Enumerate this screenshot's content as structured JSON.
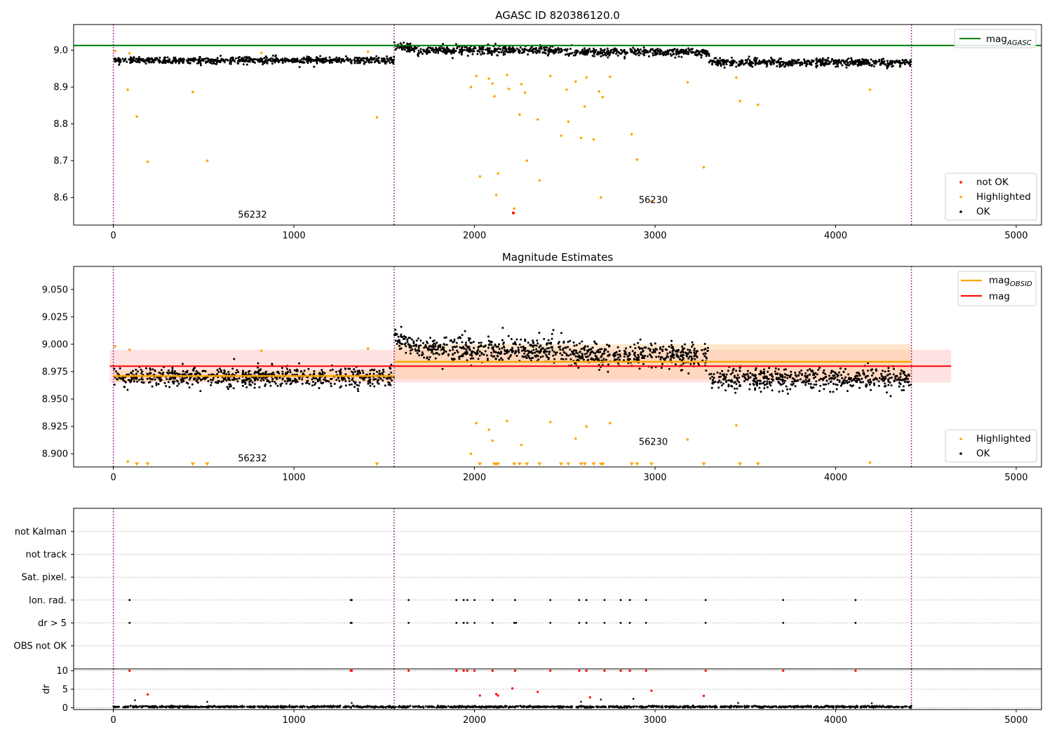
{
  "figure": {
    "colors": {
      "ok": "#000000",
      "highlighted": "#ffa500",
      "not_ok": "#ff0000",
      "agasc_line": "#008000",
      "mag_line": "#ff0000",
      "obsid_line": "#ffa500",
      "boundary": "#800080",
      "band_mag": "#ffc0c0",
      "band_obsid": "#ffc890"
    }
  },
  "chart_data": [
    {
      "type": "scatter",
      "title": "AGASC ID 820386120.0",
      "xlim": [
        -220,
        5140
      ],
      "ylim": [
        8.525,
        9.07
      ],
      "xticks": [
        0,
        1000,
        2000,
        3000,
        4000,
        5000
      ],
      "yticks": [
        8.6,
        8.7,
        8.8,
        8.9,
        9.0
      ],
      "ytick_labels": [
        "8.6",
        "8.7",
        "8.8",
        "8.9",
        "9.0"
      ],
      "reference_line": {
        "name": "mag",
        "subscript": "AGASC",
        "y": 9.013
      },
      "obsid_boundaries": [
        0,
        1555,
        4420
      ],
      "obsid_labels": [
        {
          "text": "56232",
          "x": 770,
          "y": 8.545
        },
        {
          "text": "56230",
          "x": 2990,
          "y": 8.585
        }
      ],
      "legend": {
        "placement": "upper-right",
        "entries": [
          {
            "name": "mag",
            "subscript": "AGASC"
          }
        ]
      },
      "legend2": {
        "placement": "lower-right",
        "entries": [
          "not OK",
          "Highlighted",
          "OK"
        ]
      },
      "ok_segments": [
        {
          "x": [
            0,
            1555
          ],
          "base": 8.973,
          "spread": 0.008,
          "count": 700
        },
        {
          "x": [
            1555,
            2500
          ],
          "base": 9.0,
          "spread": 0.01,
          "count": 420
        },
        {
          "x": [
            2500,
            3300
          ],
          "base": 8.995,
          "spread": 0.01,
          "count": 360
        },
        {
          "x": [
            3300,
            4420
          ],
          "base": 8.967,
          "spread": 0.009,
          "count": 500
        }
      ],
      "highlighted": [
        [
          10,
          8.998
        ],
        [
          80,
          8.893
        ],
        [
          90,
          8.992
        ],
        [
          130,
          8.82
        ],
        [
          190,
          8.697
        ],
        [
          440,
          8.887
        ],
        [
          520,
          8.7
        ],
        [
          820,
          8.993
        ],
        [
          1410,
          8.996
        ],
        [
          1460,
          8.818
        ],
        [
          1980,
          8.9
        ],
        [
          2010,
          8.93
        ],
        [
          2030,
          8.657
        ],
        [
          2080,
          8.923
        ],
        [
          2100,
          8.91
        ],
        [
          2110,
          8.875
        ],
        [
          2120,
          8.607
        ],
        [
          2130,
          8.665
        ],
        [
          2180,
          8.933
        ],
        [
          2190,
          8.895
        ],
        [
          2220,
          8.57
        ],
        [
          2250,
          8.825
        ],
        [
          2260,
          8.908
        ],
        [
          2280,
          8.885
        ],
        [
          2290,
          8.7
        ],
        [
          2350,
          8.812
        ],
        [
          2360,
          8.646
        ],
        [
          2420,
          8.93
        ],
        [
          2480,
          8.768
        ],
        [
          2510,
          8.893
        ],
        [
          2520,
          8.806
        ],
        [
          2560,
          8.915
        ],
        [
          2590,
          8.762
        ],
        [
          2610,
          8.847
        ],
        [
          2620,
          8.926
        ],
        [
          2660,
          8.758
        ],
        [
          2690,
          8.888
        ],
        [
          2700,
          8.6
        ],
        [
          2710,
          8.873
        ],
        [
          2750,
          8.928
        ],
        [
          2870,
          8.772
        ],
        [
          2900,
          8.703
        ],
        [
          2980,
          8.59
        ],
        [
          3180,
          8.913
        ],
        [
          3270,
          8.682
        ],
        [
          3450,
          8.926
        ],
        [
          3470,
          8.862
        ],
        [
          3570,
          8.852
        ],
        [
          4190,
          8.893
        ]
      ],
      "not_ok": [
        [
          2215,
          8.558
        ]
      ]
    },
    {
      "type": "scatter",
      "title": "Magnitude Estimates",
      "xlim": [
        -220,
        5140
      ],
      "ylim": [
        8.888,
        9.071
      ],
      "xticks": [
        0,
        1000,
        2000,
        3000,
        4000,
        5000
      ],
      "yticks": [
        8.9,
        8.925,
        8.95,
        8.975,
        9.0,
        9.025,
        9.05
      ],
      "ytick_labels": [
        "8.900",
        "8.925",
        "8.950",
        "8.975",
        "9.000",
        "9.025",
        "9.050"
      ],
      "mag": {
        "name": "mag",
        "y": 8.98,
        "band": [
          8.965,
          8.995
        ],
        "x": [
          -20,
          4640
        ]
      },
      "obsid_mag": [
        {
          "name": "mag",
          "subscript": "OBSID",
          "x": [
            0,
            1555
          ],
          "y": 8.971,
          "band": [
            8.966,
            8.976
          ]
        },
        {
          "x": [
            1555,
            4420
          ],
          "y": 8.984,
          "band": [
            8.968,
            9.0
          ]
        }
      ],
      "obsid_boundaries": [
        0,
        1555,
        4420
      ],
      "obsid_labels": [
        {
          "text": "56232",
          "x": 770,
          "y": 8.893
        },
        {
          "text": "56230",
          "x": 2990,
          "y": 8.908
        }
      ],
      "legend": {
        "placement": "upper-right",
        "entries": [
          {
            "name": "mag",
            "subscript": "OBSID"
          },
          {
            "name": "mag"
          }
        ]
      },
      "legend2": {
        "placement": "lower-right",
        "entries": [
          "Highlighted",
          "OK"
        ]
      },
      "ok_segments": [
        {
          "x": [
            0,
            1555
          ],
          "base": 8.97,
          "spread": 0.008,
          "count": 700
        },
        {
          "x": [
            1555,
            2500
          ],
          "base": 8.995,
          "spread": 0.01,
          "count": 460
        },
        {
          "x": [
            2500,
            3300
          ],
          "base": 8.99,
          "spread": 0.01,
          "count": 380
        },
        {
          "x": [
            3300,
            4420
          ],
          "base": 8.968,
          "spread": 0.009,
          "count": 520
        }
      ],
      "highlighted": [
        [
          10,
          8.998
        ],
        [
          80,
          8.893
        ],
        [
          90,
          8.995
        ],
        [
          820,
          8.994
        ],
        [
          1410,
          8.996
        ],
        [
          1980,
          8.9
        ],
        [
          2010,
          8.928
        ],
        [
          2080,
          8.922
        ],
        [
          2100,
          8.912
        ],
        [
          2180,
          8.93
        ],
        [
          2260,
          8.908
        ],
        [
          2420,
          8.929
        ],
        [
          2560,
          8.914
        ],
        [
          2620,
          8.925
        ],
        [
          2750,
          8.928
        ],
        [
          3180,
          8.913
        ],
        [
          3450,
          8.926
        ],
        [
          4190,
          8.892
        ]
      ],
      "lower_markers": [
        130,
        190,
        440,
        520,
        1460,
        2030,
        2110,
        2120,
        2130,
        2220,
        2250,
        2290,
        2360,
        2480,
        2520,
        2590,
        2610,
        2660,
        2700,
        2710,
        2870,
        2900,
        2980,
        3270,
        3470,
        3570
      ]
    },
    {
      "type": "scatter",
      "xlim": [
        -220,
        5140
      ],
      "xticks": [
        0,
        1000,
        2000,
        3000,
        4000,
        5000
      ],
      "categories": [
        "not Kalman",
        "not track",
        "Sat. pixel.",
        "Ion. rad.",
        "dr > 5",
        "OBS not OK"
      ],
      "flags": {
        "Ion. rad.": [
          90,
          1315,
          1320,
          1635,
          1900,
          1940,
          1960,
          2000,
          2100,
          2225,
          2420,
          2580,
          2620,
          2720,
          2810,
          2860,
          2950,
          3280,
          3710,
          4110
        ],
        "dr > 5": [
          90,
          1315,
          1320,
          1635,
          1900,
          1940,
          1960,
          2000,
          2100,
          2220,
          2230,
          2420,
          2580,
          2620,
          2720,
          2810,
          2860,
          2950,
          3280,
          3710,
          4110
        ]
      },
      "obsid_boundaries": [
        0,
        1555,
        4420
      ]
    },
    {
      "type": "scatter",
      "ylabel": "dr",
      "xlim": [
        -220,
        5140
      ],
      "ylim": [
        -0.5,
        10.5
      ],
      "xticks": [
        0,
        1000,
        2000,
        3000,
        4000,
        5000
      ],
      "yticks": [
        0,
        5,
        10
      ],
      "ytick_labels": [
        "0",
        "5",
        "10"
      ],
      "dr_red": [
        [
          90,
          10
        ],
        [
          190,
          3.6
        ],
        [
          1315,
          10
        ],
        [
          1320,
          10
        ],
        [
          1635,
          10
        ],
        [
          1900,
          10
        ],
        [
          1940,
          10
        ],
        [
          1960,
          10
        ],
        [
          2000,
          10
        ],
        [
          2030,
          3.3
        ],
        [
          2100,
          10
        ],
        [
          2120,
          3.7
        ],
        [
          2130,
          3.3
        ],
        [
          2210,
          5.2
        ],
        [
          2225,
          10
        ],
        [
          2350,
          4.3
        ],
        [
          2420,
          10
        ],
        [
          2580,
          10
        ],
        [
          2620,
          10
        ],
        [
          2640,
          2.8
        ],
        [
          2720,
          10
        ],
        [
          2810,
          10
        ],
        [
          2860,
          10
        ],
        [
          2950,
          10
        ],
        [
          2980,
          4.6
        ],
        [
          3270,
          3.2
        ],
        [
          3280,
          10
        ],
        [
          3710,
          10
        ],
        [
          4110,
          10
        ]
      ],
      "dr_black": [
        [
          120,
          2
        ],
        [
          520,
          1.6
        ],
        [
          1320,
          1.3
        ],
        [
          2590,
          1.6
        ],
        [
          2700,
          2.2
        ],
        [
          2880,
          2.4
        ],
        [
          3460,
          1.3
        ],
        [
          4200,
          1.2
        ]
      ],
      "baseline": {
        "x": [
          0,
          4420
        ],
        "base": 0.25,
        "spread": 0.2,
        "count": 1400
      },
      "obsid_boundaries": [
        0,
        1555,
        4420
      ]
    }
  ]
}
